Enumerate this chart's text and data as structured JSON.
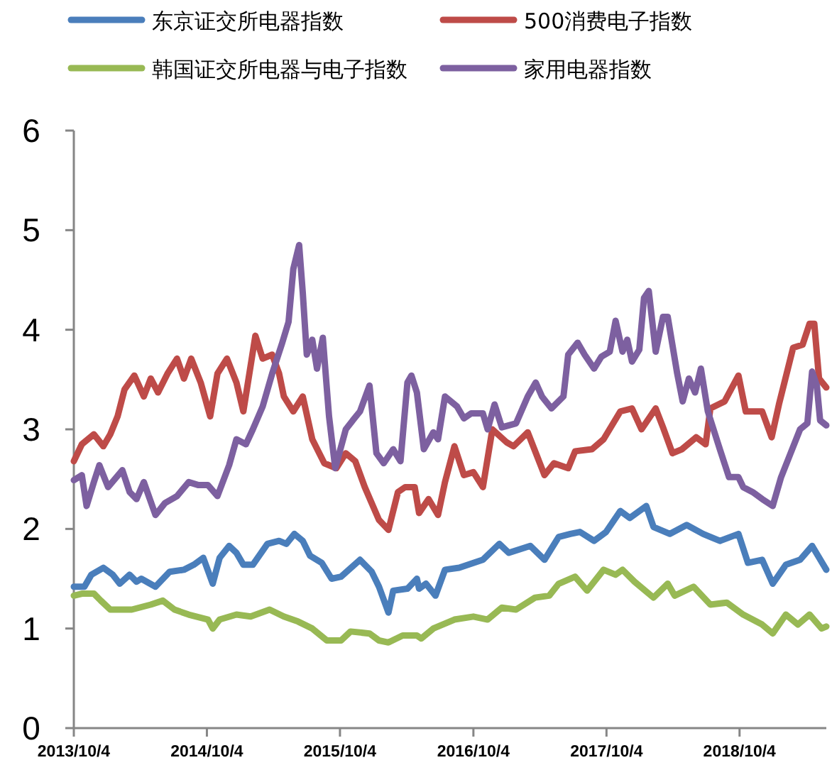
{
  "chart_data": {
    "type": "line",
    "legend": "top",
    "grid": false,
    "line_style": "solid",
    "xlim": [
      "2013-10-04",
      "2019-05-30"
    ],
    "xticks": [
      {
        "value": "2013-10-04",
        "label": "2013/10/4"
      },
      {
        "value": "2014-10-04",
        "label": "2014/10/4"
      },
      {
        "value": "2015-10-04",
        "label": "2015/10/4"
      },
      {
        "value": "2016-10-04",
        "label": "2016/10/4"
      },
      {
        "value": "2017-10-04",
        "label": "2017/10/4"
      },
      {
        "value": "2018-10-04",
        "label": "2018/10/4"
      }
    ],
    "ylim": [
      0,
      6
    ],
    "yticks": [
      0,
      1,
      2,
      3,
      4,
      5,
      6
    ],
    "series": [
      {
        "name": "东京证交所电器指数",
        "color": "#4a7ebb",
        "x": [
          "2013-10-04",
          "2013-11-02",
          "2013-11-21",
          "2013-12-24",
          "2014-01-19",
          "2014-02-07",
          "2014-03-06",
          "2014-03-25",
          "2014-04-07",
          "2014-05-16",
          "2014-06-24",
          "2014-08-02",
          "2014-08-29",
          "2014-09-24",
          "2014-10-20",
          "2014-11-08",
          "2014-12-04",
          "2014-12-24",
          "2015-01-12",
          "2015-02-07",
          "2015-03-19",
          "2015-04-20",
          "2015-05-10",
          "2015-06-01",
          "2015-06-24",
          "2015-07-14",
          "2015-08-15",
          "2015-09-11",
          "2015-10-07",
          "2015-11-28",
          "2015-12-30",
          "2016-01-19",
          "2016-02-14",
          "2016-02-27",
          "2016-04-06",
          "2016-05-02",
          "2016-05-08",
          "2016-05-27",
          "2016-06-22",
          "2016-07-18",
          "2016-08-26",
          "2016-10-30",
          "2016-12-14",
          "2017-01-09",
          "2017-03-09",
          "2017-04-17",
          "2017-05-26",
          "2017-06-27",
          "2017-07-23",
          "2017-08-31",
          "2017-10-03",
          "2017-11-11",
          "2017-12-07",
          "2018-01-21",
          "2018-02-10",
          "2018-03-27",
          "2018-05-12",
          "2018-06-26",
          "2018-08-11",
          "2018-10-01",
          "2018-10-27",
          "2018-12-05",
          "2019-01-03",
          "2019-02-08",
          "2019-03-19",
          "2019-04-21",
          "2019-05-30"
        ],
        "values": [
          1.42,
          1.42,
          1.54,
          1.61,
          1.54,
          1.45,
          1.54,
          1.47,
          1.5,
          1.42,
          1.57,
          1.59,
          1.64,
          1.71,
          1.45,
          1.71,
          1.83,
          1.76,
          1.64,
          1.64,
          1.85,
          1.88,
          1.85,
          1.95,
          1.88,
          1.73,
          1.66,
          1.5,
          1.52,
          1.69,
          1.57,
          1.42,
          1.16,
          1.38,
          1.4,
          1.5,
          1.4,
          1.45,
          1.33,
          1.59,
          1.61,
          1.69,
          1.85,
          1.76,
          1.83,
          1.69,
          1.92,
          1.95,
          1.97,
          1.88,
          1.97,
          2.18,
          2.11,
          2.23,
          2.02,
          1.95,
          2.04,
          1.95,
          1.88,
          1.95,
          1.66,
          1.69,
          1.45,
          1.64,
          1.69,
          1.83,
          1.59
        ]
      },
      {
        "name": "500消费电子指数",
        "color": "#be4b48",
        "x": [
          "2013-10-04",
          "2013-10-26",
          "2013-11-28",
          "2013-12-24",
          "2014-01-12",
          "2014-02-01",
          "2014-02-20",
          "2014-03-19",
          "2014-04-14",
          "2014-05-03",
          "2014-05-23",
          "2014-06-18",
          "2014-07-14",
          "2014-08-02",
          "2014-08-22",
          "2014-09-17",
          "2014-10-13",
          "2014-11-02",
          "2014-11-28",
          "2014-12-24",
          "2015-01-12",
          "2015-02-14",
          "2015-03-06",
          "2015-04-01",
          "2015-04-20",
          "2015-05-03",
          "2015-05-29",
          "2015-06-24",
          "2015-07-20",
          "2015-08-22",
          "2015-09-24",
          "2015-10-20",
          "2015-11-15",
          "2015-12-11",
          "2016-01-19",
          "2016-02-14",
          "2016-03-11",
          "2016-03-31",
          "2016-04-26",
          "2016-05-08",
          "2016-06-03",
          "2016-06-29",
          "2016-07-18",
          "2016-08-13",
          "2016-09-08",
          "2016-10-04",
          "2016-10-30",
          "2016-11-25",
          "2017-01-03",
          "2017-01-22",
          "2017-03-02",
          "2017-04-17",
          "2017-05-13",
          "2017-06-21",
          "2017-07-10",
          "2017-08-25",
          "2017-09-26",
          "2017-11-11",
          "2017-12-13",
          "2018-01-08",
          "2018-02-16",
          "2018-03-08",
          "2018-04-03",
          "2018-04-29",
          "2018-06-07",
          "2018-07-03",
          "2018-07-16",
          "2018-08-24",
          "2018-10-01",
          "2018-10-21",
          "2018-12-05",
          "2018-12-31",
          "2019-01-20",
          "2019-02-28",
          "2019-03-26",
          "2019-04-14",
          "2019-04-27",
          "2019-05-10",
          "2019-05-30"
        ],
        "values": [
          2.68,
          2.85,
          2.95,
          2.83,
          2.95,
          3.13,
          3.4,
          3.54,
          3.33,
          3.51,
          3.37,
          3.56,
          3.71,
          3.51,
          3.71,
          3.47,
          3.13,
          3.56,
          3.71,
          3.47,
          3.18,
          3.94,
          3.71,
          3.75,
          3.56,
          3.33,
          3.18,
          3.33,
          2.9,
          2.66,
          2.61,
          2.76,
          2.68,
          2.42,
          2.09,
          1.99,
          2.37,
          2.42,
          2.42,
          2.16,
          2.3,
          2.14,
          2.47,
          2.83,
          2.54,
          2.57,
          2.42,
          3.0,
          2.87,
          2.83,
          2.97,
          2.54,
          2.66,
          2.61,
          2.78,
          2.8,
          2.9,
          3.18,
          3.21,
          3.0,
          3.21,
          3.02,
          2.76,
          2.8,
          2.92,
          2.85,
          3.21,
          3.28,
          3.54,
          3.18,
          3.18,
          2.92,
          3.25,
          3.82,
          3.85,
          4.06,
          4.06,
          3.51,
          3.42
        ]
      },
      {
        "name": "韩国证交所电器与电子指数",
        "color": "#98b954",
        "x": [
          "2013-10-04",
          "2013-10-26",
          "2013-11-28",
          "2013-12-17",
          "2014-01-12",
          "2014-03-12",
          "2014-05-03",
          "2014-06-05",
          "2014-07-07",
          "2014-08-15",
          "2014-10-07",
          "2014-10-20",
          "2014-11-08",
          "2014-12-24",
          "2015-02-01",
          "2015-03-25",
          "2015-05-03",
          "2015-06-11",
          "2015-07-20",
          "2015-08-29",
          "2015-10-07",
          "2015-11-02",
          "2015-12-24",
          "2016-01-19",
          "2016-02-14",
          "2016-03-24",
          "2016-05-02",
          "2016-05-14",
          "2016-06-16",
          "2016-08-13",
          "2016-10-04",
          "2016-11-12",
          "2016-12-21",
          "2017-01-29",
          "2017-03-22",
          "2017-04-30",
          "2017-05-26",
          "2017-07-10",
          "2017-08-12",
          "2017-09-26",
          "2017-10-29",
          "2017-11-17",
          "2017-12-20",
          "2018-02-10",
          "2018-03-21",
          "2018-04-09",
          "2018-05-31",
          "2018-07-16",
          "2018-08-30",
          "2018-10-14",
          "2018-12-05",
          "2019-01-03",
          "2019-02-08",
          "2019-03-13",
          "2019-04-14",
          "2019-05-17",
          "2019-05-30"
        ],
        "values": [
          1.33,
          1.35,
          1.35,
          1.28,
          1.19,
          1.19,
          1.24,
          1.28,
          1.19,
          1.14,
          1.09,
          1.0,
          1.09,
          1.14,
          1.12,
          1.19,
          1.12,
          1.07,
          1.0,
          0.88,
          0.88,
          0.97,
          0.95,
          0.88,
          0.86,
          0.93,
          0.93,
          0.9,
          1.0,
          1.09,
          1.12,
          1.09,
          1.21,
          1.19,
          1.31,
          1.33,
          1.45,
          1.52,
          1.38,
          1.59,
          1.54,
          1.59,
          1.47,
          1.31,
          1.45,
          1.33,
          1.42,
          1.24,
          1.26,
          1.14,
          1.04,
          0.95,
          1.14,
          1.04,
          1.14,
          1.0,
          1.02
        ]
      },
      {
        "name": "家用电器指数",
        "color": "#7d60a0",
        "x": [
          "2013-10-04",
          "2013-10-26",
          "2013-11-08",
          "2013-11-28",
          "2013-12-13",
          "2014-01-06",
          "2014-02-14",
          "2014-03-06",
          "2014-03-25",
          "2014-04-14",
          "2014-05-16",
          "2014-06-11",
          "2014-07-14",
          "2014-08-15",
          "2014-09-11",
          "2014-10-07",
          "2014-11-02",
          "2014-12-04",
          "2014-12-24",
          "2015-01-19",
          "2015-02-07",
          "2015-03-06",
          "2015-04-01",
          "2015-04-27",
          "2015-05-16",
          "2015-05-29",
          "2015-06-14",
          "2015-06-24",
          "2015-07-05",
          "2015-07-20",
          "2015-08-02",
          "2015-08-18",
          "2015-09-04",
          "2015-09-21",
          "2015-10-20",
          "2015-11-08",
          "2015-11-28",
          "2015-12-24",
          "2016-01-12",
          "2016-02-01",
          "2016-02-27",
          "2016-03-18",
          "2016-04-06",
          "2016-04-17",
          "2016-05-02",
          "2016-05-21",
          "2016-06-16",
          "2016-06-29",
          "2016-07-18",
          "2016-08-20",
          "2016-09-08",
          "2016-09-28",
          "2016-10-30",
          "2016-11-12",
          "2016-12-01",
          "2016-12-21",
          "2017-01-29",
          "2017-03-02",
          "2017-03-24",
          "2017-04-10",
          "2017-05-06",
          "2017-06-08",
          "2017-06-21",
          "2017-07-17",
          "2017-08-05",
          "2017-08-31",
          "2017-09-20",
          "2017-10-13",
          "2017-10-29",
          "2017-11-17",
          "2017-11-30",
          "2017-12-13",
          "2018-01-02",
          "2018-01-15",
          "2018-01-28",
          "2018-02-16",
          "2018-03-08",
          "2018-03-21",
          "2018-04-16",
          "2018-05-01",
          "2018-05-18",
          "2018-06-04",
          "2018-06-20",
          "2018-07-09",
          "2018-08-11",
          "2018-09-05",
          "2018-10-01",
          "2018-10-14",
          "2018-11-09",
          "2018-12-05",
          "2019-01-03",
          "2019-01-26",
          "2019-02-21",
          "2019-03-19",
          "2019-04-08",
          "2019-04-21",
          "2019-05-04",
          "2019-05-13",
          "2019-05-30"
        ],
        "values": [
          2.49,
          2.54,
          2.23,
          2.47,
          2.64,
          2.42,
          2.59,
          2.37,
          2.3,
          2.47,
          2.14,
          2.26,
          2.33,
          2.47,
          2.44,
          2.44,
          2.33,
          2.64,
          2.9,
          2.85,
          3.0,
          3.23,
          3.56,
          3.85,
          4.08,
          4.61,
          4.85,
          4.37,
          3.75,
          3.9,
          3.61,
          3.92,
          3.13,
          2.61,
          3.0,
          3.09,
          3.18,
          3.44,
          2.76,
          2.66,
          2.8,
          2.68,
          3.47,
          3.54,
          3.37,
          2.8,
          2.97,
          2.9,
          3.33,
          3.23,
          3.11,
          3.16,
          3.16,
          3.0,
          3.25,
          3.02,
          3.06,
          3.33,
          3.47,
          3.33,
          3.21,
          3.33,
          3.75,
          3.87,
          3.75,
          3.61,
          3.73,
          3.78,
          4.09,
          3.78,
          3.9,
          3.68,
          3.8,
          4.32,
          4.39,
          3.78,
          4.13,
          4.13,
          3.56,
          3.28,
          3.51,
          3.37,
          3.61,
          3.18,
          2.8,
          2.52,
          2.52,
          2.42,
          2.37,
          2.3,
          2.23,
          2.52,
          2.76,
          3.0,
          3.06,
          3.58,
          3.44,
          3.09,
          3.04
        ]
      }
    ]
  }
}
